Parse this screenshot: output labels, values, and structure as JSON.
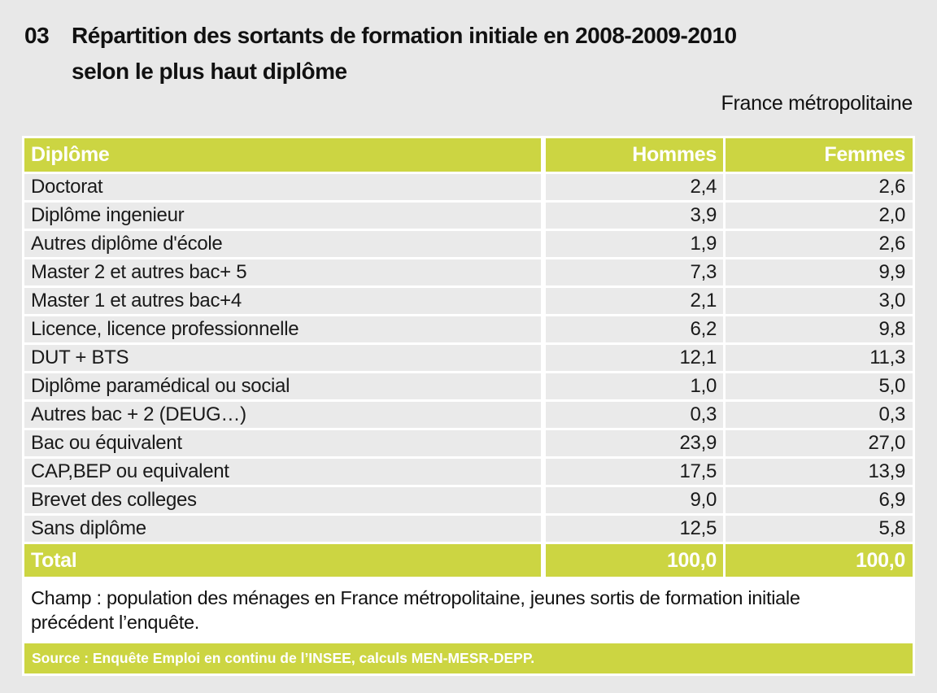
{
  "page": {
    "figure_number": "03",
    "title_line1": "Répartition des sortants de formation initiale en 2008-2009-2010",
    "title_line2": "selon le plus haut diplôme",
    "region_note": "France métropolitaine"
  },
  "colors": {
    "accent_green": "#ccd542",
    "row_background": "#eaeaea",
    "page_background": "#e8e8e8",
    "header_text": "#ffffff",
    "body_text": "#1a1a1a"
  },
  "table": {
    "columns": [
      "Diplôme",
      "Hommes",
      "Femmes"
    ],
    "rows": [
      {
        "label": "Doctorat",
        "hommes": "2,4",
        "femmes": "2,6"
      },
      {
        "label": "Diplôme ingenieur",
        "hommes": "3,9",
        "femmes": "2,0"
      },
      {
        "label": "Autres diplôme d'école",
        "hommes": "1,9",
        "femmes": "2,6"
      },
      {
        "label": "Master 2 et autres bac+ 5",
        "hommes": "7,3",
        "femmes": "9,9"
      },
      {
        "label": "Master 1 et autres bac+4",
        "hommes": "2,1",
        "femmes": "3,0"
      },
      {
        "label": "Licence, licence professionnelle",
        "hommes": "6,2",
        "femmes": "9,8"
      },
      {
        "label": "DUT + BTS",
        "hommes": "12,1",
        "femmes": "11,3"
      },
      {
        "label": "Diplôme paramédical ou social",
        "hommes": "1,0",
        "femmes": "5,0"
      },
      {
        "label": "Autres bac + 2 (DEUG…)",
        "hommes": "0,3",
        "femmes": "0,3"
      },
      {
        "label": "Bac ou équivalent",
        "hommes": "23,9",
        "femmes": "27,0"
      },
      {
        "label": "CAP,BEP ou equivalent",
        "hommes": "17,5",
        "femmes": "13,9"
      },
      {
        "label": "Brevet des colleges",
        "hommes": "9,0",
        "femmes": "6,9"
      },
      {
        "label": "Sans diplôme",
        "hommes": "12,5",
        "femmes": "5,8"
      }
    ],
    "total": {
      "label": "Total",
      "hommes": "100,0",
      "femmes": "100,0"
    }
  },
  "notes": {
    "champ_line1": "Champ : population des ménages en France métropolitaine, jeunes sortis de formation initiale",
    "champ_line2": "précédent l’enquête.",
    "source": "Source : Enquête Emploi en continu de l’INSEE, calculs MEN-MESR-DEPP."
  }
}
